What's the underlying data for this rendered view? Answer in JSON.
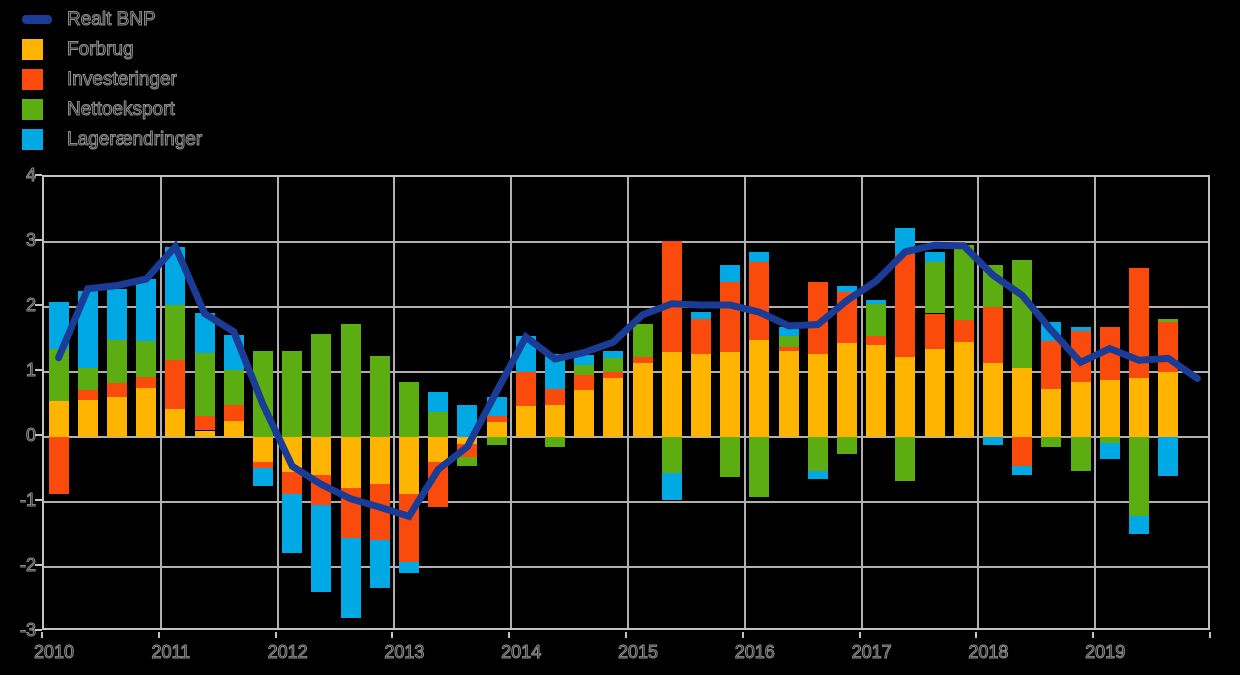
{
  "background_color": "#000000",
  "grid_color": "#b0b0b0",
  "frame_color": "#c2c2c2",
  "legend": {
    "items": [
      {
        "label": "Realt BNP",
        "color": "#1b3c96",
        "swatch": "line"
      },
      {
        "label": "Forbrug",
        "color": "#ffb400",
        "swatch": "box"
      },
      {
        "label": "Investeringer",
        "color": "#fb4b0c",
        "swatch": "box"
      },
      {
        "label": "Nettoeksport",
        "color": "#5cad11",
        "swatch": "box"
      },
      {
        "label": "Lagerændringer",
        "color": "#00a9e4",
        "swatch": "box"
      }
    ]
  },
  "chart_data": {
    "type": "bar",
    "subtype": "stacked-quarterly-bars-with-line",
    "title": "",
    "xlabel": "",
    "ylabel": "",
    "ylim": [
      -3,
      4
    ],
    "ytick_values": [
      4,
      3,
      2,
      1,
      0,
      -1,
      -2,
      -3
    ],
    "ytick_labels": [
      "4",
      "3",
      "2",
      "1",
      "0",
      "-1",
      "-2",
      "-3"
    ],
    "x_year_labels": [
      "2010",
      "2011",
      "2012",
      "2013",
      "2014",
      "2015",
      "2016",
      "2017",
      "2018",
      "2019"
    ],
    "quarters": [
      "2010Q1",
      "2010Q2",
      "2010Q3",
      "2010Q4",
      "2011Q1",
      "2011Q2",
      "2011Q3",
      "2011Q4",
      "2012Q1",
      "2012Q2",
      "2012Q3",
      "2012Q4",
      "2013Q1",
      "2013Q2",
      "2013Q3",
      "2013Q4",
      "2014Q1",
      "2014Q2",
      "2014Q3",
      "2014Q4",
      "2015Q1",
      "2015Q2",
      "2015Q3",
      "2015Q4",
      "2016Q1",
      "2016Q2",
      "2016Q3",
      "2016Q4",
      "2017Q1",
      "2017Q2",
      "2017Q3",
      "2017Q4",
      "2018Q1",
      "2018Q2",
      "2018Q3",
      "2018Q4",
      "2019Q1",
      "2019Q2",
      "2019Q3",
      "2019Q4"
    ],
    "series": [
      {
        "name": "Forbrug",
        "color": "#ffb400",
        "values": [
          0.55,
          0.57,
          0.62,
          0.75,
          0.43,
          0.1,
          0.24,
          -0.38,
          -0.54,
          -0.59,
          -0.78,
          -0.73,
          -0.88,
          -0.38,
          -0.1,
          0.23,
          0.48,
          0.49,
          0.72,
          0.91,
          1.14,
          1.31,
          1.28,
          1.31,
          1.49,
          1.33,
          1.28,
          1.44,
          1.41,
          1.23,
          1.36,
          1.46,
          1.14,
          1.06,
          0.74,
          0.85,
          0.87,
          0.91,
          1.0,
          null
        ]
      },
      {
        "name": "Investeringer",
        "color": "#fb4b0c",
        "values": [
          -0.87,
          0.16,
          0.21,
          0.18,
          0.76,
          0.23,
          0.25,
          -0.1,
          -0.33,
          -0.45,
          -0.78,
          -0.85,
          -1.04,
          -0.7,
          -0.21,
          0.1,
          0.52,
          0.25,
          0.24,
          0.09,
          0.09,
          1.7,
          0.54,
          1.07,
          1.21,
          0.05,
          1.11,
          0.79,
          0.15,
          1.59,
          0.54,
          0.34,
          0.86,
          -0.44,
          0.73,
          0.78,
          0.82,
          1.69,
          0.77,
          null
        ]
      },
      {
        "name": "Nettoeksport",
        "color": "#5cad11",
        "values": [
          0.8,
          0.33,
          0.66,
          0.55,
          0.84,
          0.96,
          0.54,
          1.32,
          1.33,
          1.58,
          1.74,
          1.24,
          0.85,
          0.38,
          -0.13,
          -0.12,
          0.0,
          -0.15,
          0.15,
          0.21,
          0.51,
          -0.56,
          0.0,
          -0.62,
          -0.92,
          0.18,
          -0.53,
          -0.26,
          0.48,
          -0.67,
          0.79,
          1.15,
          0.65,
          1.67,
          -0.15,
          -0.53,
          -0.09,
          -1.21,
          0.04,
          null
        ]
      },
      {
        "name": "Lagerændringer",
        "color": "#00a9e4",
        "values": [
          0.73,
          1.18,
          0.78,
          0.95,
          0.89,
          0.62,
          0.54,
          -0.27,
          -0.92,
          -1.35,
          -1.22,
          -0.75,
          -0.18,
          0.31,
          0.49,
          0.29,
          0.56,
          0.54,
          0.15,
          0.12,
          0.0,
          -0.41,
          0.11,
          0.27,
          0.15,
          0.13,
          -0.11,
          0.1,
          0.07,
          0.4,
          0.16,
          0.0,
          -0.12,
          -0.15,
          0.3,
          0.06,
          -0.25,
          -0.28,
          -0.6,
          null
        ]
      }
    ],
    "line": {
      "name": "Realt BNP",
      "color": "#1b3c96",
      "stroke_width": 7,
      "values": [
        1.22,
        2.28,
        2.33,
        2.43,
        2.93,
        1.9,
        1.62,
        0.5,
        -0.45,
        -0.73,
        -0.95,
        -1.08,
        -1.22,
        -0.5,
        -0.15,
        0.7,
        1.54,
        1.2,
        1.3,
        1.46,
        1.88,
        2.05,
        2.03,
        2.03,
        1.92,
        1.71,
        1.73,
        2.1,
        2.4,
        2.85,
        2.95,
        2.94,
        2.49,
        2.18,
        1.64,
        1.15,
        1.36,
        1.18,
        1.21,
        0.9
      ]
    },
    "legend_position": "top-left",
    "grid": true
  }
}
